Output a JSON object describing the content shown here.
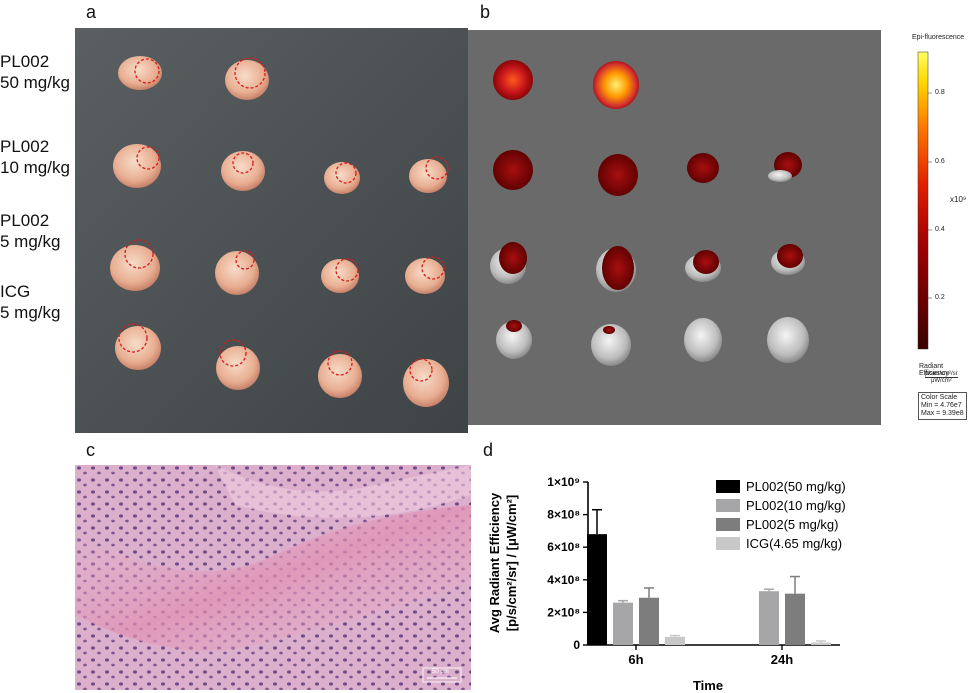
{
  "panels": {
    "a": "a",
    "b": "b",
    "c": "c",
    "d": "d"
  },
  "groups": [
    {
      "name": "PL002",
      "dose": "50 mg/kg"
    },
    {
      "name": "PL002",
      "dose": "10 mg/kg"
    },
    {
      "name": "PL002",
      "dose": "5 mg/kg"
    },
    {
      "name": "ICG",
      "dose": "5 mg/kg"
    }
  ],
  "colorbar": {
    "title": "Epi-fluorescence",
    "ticks": [
      "0.8",
      "0.6",
      "0.4",
      "0.2"
    ],
    "exponent": "x10⁹",
    "unit_label": "Radiant Efficiency",
    "unit_num": "p/sec/cm²/sr",
    "unit_den": "μW/cm²",
    "scale_title": "Color Scale",
    "scale_min": "Min = 4.76e7",
    "scale_max": "Max = 9.39e8"
  },
  "scale_bar": "50 μm",
  "chart_data": {
    "type": "bar",
    "categories": [
      "6h",
      "24h"
    ],
    "xlabel": "Time",
    "ylabel_line1": "Avg Radiant Efficiency",
    "ylabel_line2": "[p/s/cm²/sr] / [μW/cm²]",
    "ylim": [
      0,
      1000000000
    ],
    "yticks": [
      0,
      200000000,
      400000000,
      600000000,
      800000000,
      1000000000
    ],
    "ytick_labels": [
      "0",
      "2×10⁸",
      "4×10⁸",
      "6×10⁸",
      "8×10⁸",
      "1×10⁹"
    ],
    "series": [
      {
        "name": "PL002(50 mg/kg)",
        "color": "#000000",
        "values": [
          680000000,
          null
        ],
        "errors": [
          150000000,
          null
        ]
      },
      {
        "name": "PL002(10 mg/kg)",
        "color": "#a6a6a8",
        "values": [
          260000000,
          330000000
        ],
        "errors": [
          12000000,
          12000000
        ]
      },
      {
        "name": "PL002(5 mg/kg)",
        "color": "#7d7d7d",
        "values": [
          290000000,
          315000000
        ],
        "errors": [
          60000000,
          105000000
        ]
      },
      {
        "name": "ICG(4.65 mg/kg)",
        "color": "#c8c8c8",
        "values": [
          50000000,
          15000000
        ],
        "errors": [
          8000000,
          10000000
        ]
      }
    ]
  }
}
